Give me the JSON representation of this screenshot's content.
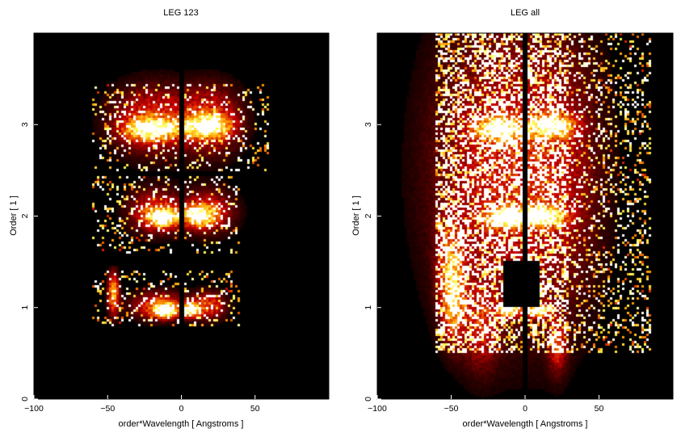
{
  "chart_data": [
    {
      "type": "heatmap",
      "title": "LEG 123",
      "xlabel": "order*Wavelength [ Angstroms ]",
      "ylabel": "Order [ 1 ]",
      "xlim": [
        -100,
        100
      ],
      "ylim": [
        0,
        4
      ],
      "xticks": [
        -100,
        -50,
        0,
        50
      ],
      "yticks": [
        0,
        1,
        2,
        3
      ],
      "colormap": "black-red-orange-yellow-white",
      "background": "#000000",
      "blobs": [
        {
          "x": -11,
          "y": 0.97,
          "sx": 5,
          "sy": 0.05,
          "v": 1.0
        },
        {
          "x": 6,
          "y": 0.97,
          "sx": 4,
          "sy": 0.05,
          "v": 1.0
        },
        {
          "x": -15,
          "y": 1.02,
          "sx": 12,
          "sy": 0.1,
          "v": 0.55
        },
        {
          "x": 18,
          "y": 1.02,
          "sx": 8,
          "sy": 0.1,
          "v": 0.5
        },
        {
          "x": -46,
          "y": 1.15,
          "sx": 2.5,
          "sy": 0.15,
          "v": 0.75
        },
        {
          "x": -12,
          "y": 1.98,
          "sx": 7,
          "sy": 0.07,
          "v": 0.9
        },
        {
          "x": 12,
          "y": 2.0,
          "sx": 7,
          "sy": 0.07,
          "v": 0.9
        },
        {
          "x": -18,
          "y": 2.05,
          "sx": 12,
          "sy": 0.16,
          "v": 0.45
        },
        {
          "x": 18,
          "y": 2.05,
          "sx": 12,
          "sy": 0.16,
          "v": 0.45
        },
        {
          "x": -20,
          "y": 2.95,
          "sx": 12,
          "sy": 0.08,
          "v": 0.9
        },
        {
          "x": 18,
          "y": 2.98,
          "sx": 10,
          "sy": 0.08,
          "v": 0.9
        },
        {
          "x": -20,
          "y": 3.05,
          "sx": 18,
          "sy": 0.25,
          "v": 0.45
        },
        {
          "x": 20,
          "y": 3.05,
          "sx": 14,
          "sy": 0.25,
          "v": 0.45
        }
      ],
      "noise_regions": [
        {
          "x0": -60,
          "x1": 40,
          "y0": 0.8,
          "y1": 1.4,
          "p": 0.18
        },
        {
          "x0": -60,
          "x1": 40,
          "y0": 1.6,
          "y1": 2.45,
          "p": 0.16
        },
        {
          "x0": -60,
          "x1": 60,
          "y0": 2.5,
          "y1": 3.45,
          "p": 0.18
        }
      ],
      "gaps": [
        {
          "x0": -2,
          "x1": 2,
          "y0": 0,
          "y1": 4
        },
        {
          "x0": -100,
          "x1": 100,
          "y0": 1.45,
          "y1": 1.6
        },
        {
          "x0": -100,
          "x1": 100,
          "y0": 2.45,
          "y1": 2.5
        }
      ]
    },
    {
      "type": "heatmap",
      "title": "LEG all",
      "xlabel": "order*Wavelength [ Angstroms ]",
      "ylabel": "Order [ 1 ]",
      "xlim": [
        -100,
        100
      ],
      "ylim": [
        0,
        4
      ],
      "xticks": [
        -100,
        -50,
        0,
        50
      ],
      "yticks": [
        0,
        1,
        2,
        3
      ],
      "colormap": "black-red-orange-yellow-white",
      "background": "#000000",
      "blobs": [
        {
          "x": -11,
          "y": 0.97,
          "sx": 5,
          "sy": 0.05,
          "v": 1.0
        },
        {
          "x": 9,
          "y": 0.97,
          "sx": 5,
          "sy": 0.05,
          "v": 1.0
        },
        {
          "x": -12,
          "y": 1.98,
          "sx": 10,
          "sy": 0.07,
          "v": 0.9
        },
        {
          "x": 12,
          "y": 2.0,
          "sx": 10,
          "sy": 0.07,
          "v": 0.9
        },
        {
          "x": -18,
          "y": 2.95,
          "sx": 10,
          "sy": 0.08,
          "v": 0.9
        },
        {
          "x": 18,
          "y": 2.98,
          "sx": 10,
          "sy": 0.08,
          "v": 0.9
        },
        {
          "x": -25,
          "y": 2.5,
          "sx": 28,
          "sy": 1.1,
          "v": 0.35
        },
        {
          "x": 20,
          "y": 2.5,
          "sx": 22,
          "sy": 1.1,
          "v": 0.3
        },
        {
          "x": -50,
          "y": 1.4,
          "sx": 6,
          "sy": 0.35,
          "v": 0.55
        },
        {
          "x": -48,
          "y": 1.0,
          "sx": 5,
          "sy": 0.25,
          "v": 0.45
        },
        {
          "x": 22,
          "y": 0.6,
          "sx": 4,
          "sy": 0.2,
          "v": 0.45
        },
        {
          "x": -30,
          "y": 0.8,
          "sx": 8,
          "sy": 0.3,
          "v": 0.35
        }
      ],
      "noise_regions": [
        {
          "x0": -60,
          "x1": 85,
          "y0": 0.5,
          "y1": 4.0,
          "p": 0.22
        },
        {
          "x0": -60,
          "x1": 30,
          "y0": 0.5,
          "y1": 4.0,
          "p": 0.35
        }
      ],
      "gaps": [
        {
          "x0": -1,
          "x1": 1,
          "y0": 0,
          "y1": 4
        },
        {
          "x0": -14,
          "x1": 10,
          "y0": 1.0,
          "y1": 1.5
        }
      ]
    }
  ]
}
